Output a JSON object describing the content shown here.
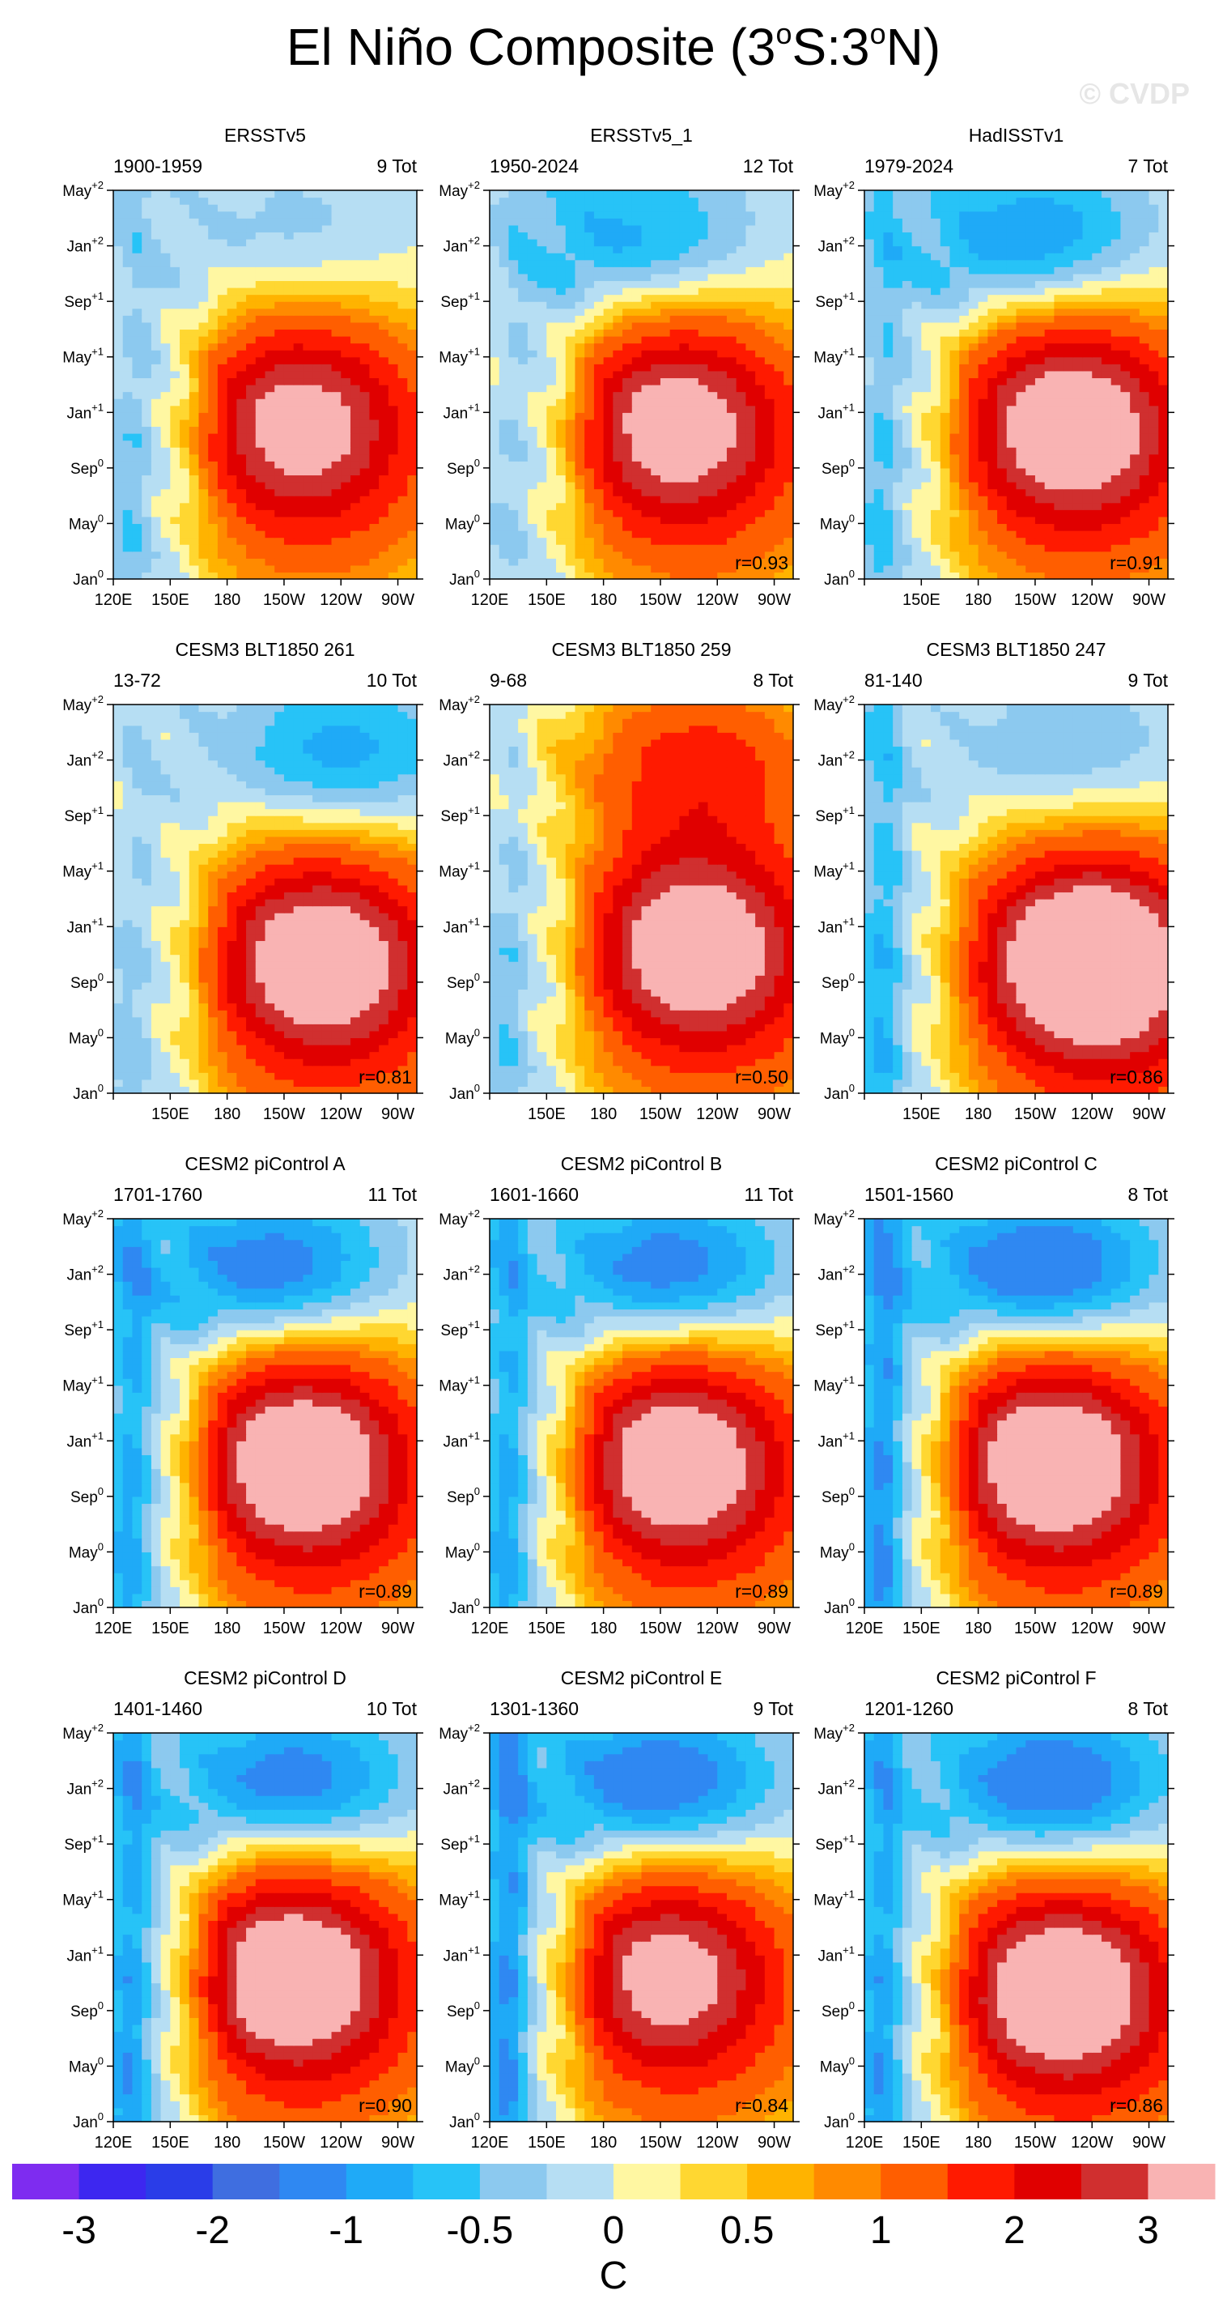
{
  "figure": {
    "title": "El Niño Composite (3",
    "title_sup1": "o",
    "title_mid": "S:3",
    "title_sup2": "o",
    "title_end": "N)",
    "watermark": "© CVDP"
  },
  "chart_data": {
    "type": "heatmap",
    "description_axes": "x = longitude, y = month relative to event",
    "x_range_deg": [
      120,
      280
    ],
    "y_range_months": [
      0,
      28
    ],
    "x_ticks": [
      {
        "label": "120E",
        "lon": 120
      },
      {
        "label": "150E",
        "lon": 150
      },
      {
        "label": "180",
        "lon": 180
      },
      {
        "label": "150W",
        "lon": 210
      },
      {
        "label": "120W",
        "lon": 240
      },
      {
        "label": "90W",
        "lon": 270
      }
    ],
    "y_ticks": [
      {
        "label": "Jan",
        "sup": "0",
        "month": 0
      },
      {
        "label": "May",
        "sup": "0",
        "month": 4
      },
      {
        "label": "Sep",
        "sup": "0",
        "month": 8
      },
      {
        "label": "Jan",
        "sup": "+1",
        "month": 12
      },
      {
        "label": "May",
        "sup": "+1",
        "month": 16
      },
      {
        "label": "Sep",
        "sup": "+1",
        "month": 20
      },
      {
        "label": "Jan",
        "sup": "+2",
        "month": 24
      },
      {
        "label": "May",
        "sup": "+2",
        "month": 28
      }
    ],
    "colorbar": {
      "colors": [
        "#7e2cf0",
        "#3d27f0",
        "#2a3de8",
        "#3f6ee0",
        "#2f88f2",
        "#1faaf7",
        "#27c3f7",
        "#8cc9ef",
        "#b6def3",
        "#fff7a2",
        "#ffd731",
        "#ffb300",
        "#ff8a00",
        "#ff5e00",
        "#ff1a00",
        "#e00000",
        "#d02f2f",
        "#f9b3b3"
      ],
      "labels": [
        "-3",
        "-2",
        "-1",
        "-0.5",
        "0",
        "0.5",
        "1",
        "2",
        "3"
      ],
      "unit": "C"
    },
    "panels": [
      {
        "title": "ERSSTv5",
        "years": "1900-1959",
        "count": "9 Tot",
        "r": "",
        "peak": 2.3,
        "peak_lon": 215,
        "peak_month": 11.5,
        "lanina": -0.5,
        "lanina_lon": 215,
        "west_cool": -0.5,
        "x_tick_from": 0
      },
      {
        "title": "ERSSTv5_1",
        "years": "1950-2024",
        "count": "12 Tot",
        "r": "r=0.93",
        "peak": 2.4,
        "peak_lon": 215,
        "peak_month": 11.5,
        "lanina": -1.0,
        "lanina_lon": 200,
        "west_cool": -0.3,
        "x_tick_from": 0
      },
      {
        "title": "HadISSTv1",
        "years": "1979-2024",
        "count": "7 Tot",
        "r": "r=0.91",
        "peak": 2.6,
        "peak_lon": 225,
        "peak_month": 11.5,
        "lanina": -1.2,
        "lanina_lon": 210,
        "west_cool": -0.6,
        "x_tick_from": 1
      },
      {
        "title": "CESM3 BLT1850 261",
        "years": "13-72",
        "count": "10 Tot",
        "r": "r=0.81",
        "peak": 2.6,
        "peak_lon": 225,
        "peak_month": 10,
        "lanina": -1.0,
        "lanina_lon": 240,
        "west_cool": -0.4,
        "x_tick_from": 1
      },
      {
        "title": "CESM3 BLT1850 259",
        "years": "9-68",
        "count": "8 Tot",
        "r": "r=0.50",
        "peak": 2.6,
        "peak_lon": 225,
        "peak_month": 11,
        "lanina": 1.6,
        "lanina_lon": 230,
        "west_cool": -0.5,
        "x_tick_from": 1
      },
      {
        "title": "CESM3 BLT1850 247",
        "years": "81-140",
        "count": "9 Tot",
        "r": "r=0.86",
        "peak": 3.1,
        "peak_lon": 235,
        "peak_month": 10,
        "lanina": -0.6,
        "lanina_lon": 230,
        "west_cool": -0.8,
        "x_tick_from": 1
      },
      {
        "title": "CESM2 piControl A",
        "years": "1701-1760",
        "count": "11 Tot",
        "r": "r=0.89",
        "peak": 2.7,
        "peak_lon": 215,
        "peak_month": 11,
        "lanina": -1.4,
        "lanina_lon": 205,
        "west_cool": -0.9,
        "x_tick_from": 0
      },
      {
        "title": "CESM2 piControl B",
        "years": "1601-1660",
        "count": "11 Tot",
        "r": "r=0.89",
        "peak": 2.6,
        "peak_lon": 215,
        "peak_month": 11,
        "lanina": -1.4,
        "lanina_lon": 215,
        "west_cool": -0.9,
        "x_tick_from": 0
      },
      {
        "title": "CESM2 piControl C",
        "years": "1501-1560",
        "count": "8 Tot",
        "r": "r=0.89",
        "peak": 2.7,
        "peak_lon": 215,
        "peak_month": 11,
        "lanina": -1.6,
        "lanina_lon": 215,
        "west_cool": -1.1,
        "x_tick_from": 0
      },
      {
        "title": "CESM2 piControl D",
        "years": "1401-1460",
        "count": "10 Tot",
        "r": "r=0.90",
        "peak": 2.7,
        "peak_lon": 210,
        "peak_month": 11,
        "lanina": -1.4,
        "lanina_lon": 215,
        "west_cool": -1.0,
        "x_tick_from": 0
      },
      {
        "title": "CESM2 piControl E",
        "years": "1301-1360",
        "count": "9 Tot",
        "r": "r=0.84",
        "peak": 2.3,
        "peak_lon": 210,
        "peak_month": 11,
        "lanina": -1.5,
        "lanina_lon": 210,
        "west_cool": -1.1,
        "x_tick_from": 0
      },
      {
        "title": "CESM2 piControl F",
        "years": "1201-1260",
        "count": "8 Tot",
        "r": "r=0.86",
        "peak": 2.7,
        "peak_lon": 220,
        "peak_month": 10,
        "lanina": -1.5,
        "lanina_lon": 220,
        "west_cool": -1.0,
        "x_tick_from": 0
      }
    ]
  }
}
